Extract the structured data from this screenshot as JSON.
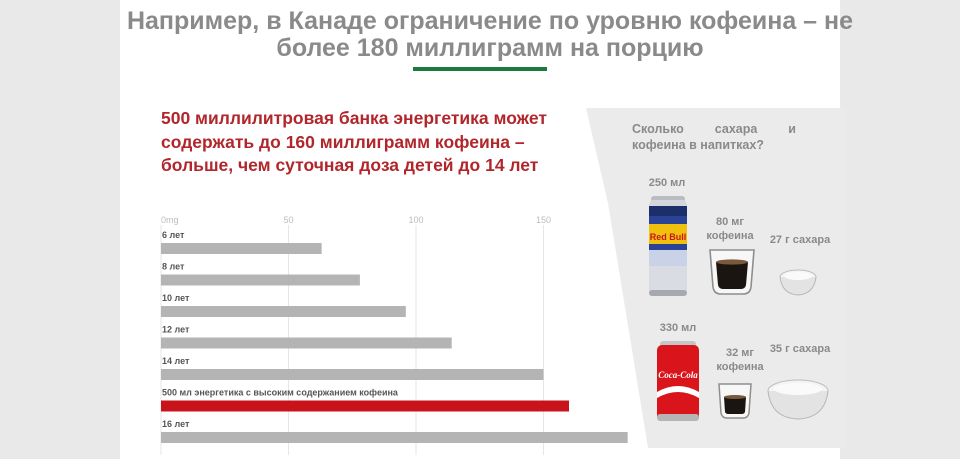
{
  "title": "Например, в Канаде ограничение по уровню кофеина – не более 180 миллиграмм на порцию",
  "headline": "500 миллилитровая банка энергетика может содержать до 160 миллиграмм кофеина – больше, чем суточная доза детей до 14 лет",
  "colors": {
    "accent_red": "#c8131a",
    "bar_gray": "#b4b4b4",
    "title_gray": "#8a8a8a",
    "rule_green": "#1e7a3c"
  },
  "chart_data": {
    "type": "bar",
    "orientation": "horizontal",
    "tick_labels": [
      "0mg",
      "50",
      "100",
      "150"
    ],
    "xlim": [
      0,
      180
    ],
    "grid": true,
    "categories": [
      "6 лет",
      "8 лет",
      "10 лет",
      "12 лет",
      "14 лет",
      "500 мл энергетика с высоким содержанием кофеина",
      "16 лет"
    ],
    "values": [
      63,
      78,
      96,
      114,
      150,
      160,
      183
    ],
    "highlight_index": 5
  },
  "panel": {
    "title": "Сколько сахара и кофеина в напитках?",
    "drinks": [
      {
        "volume": "250 мл",
        "brand": "Red Bull",
        "caffeine": "80 мг кофеина",
        "sugar": "27 г сахара",
        "icon": "energy-drink-can-icon"
      },
      {
        "volume": "330 мл",
        "brand": "Coca-Cola",
        "caffeine": "32 мг кофеина",
        "sugar": "35 г сахара",
        "icon": "cola-can-icon"
      }
    ]
  }
}
